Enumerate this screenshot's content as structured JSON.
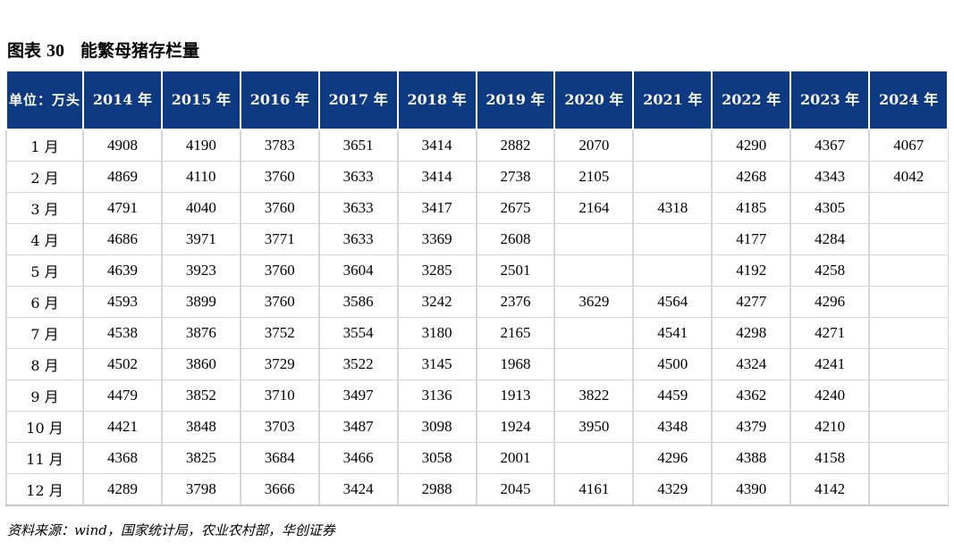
{
  "title": {
    "label": "图表",
    "number": "30",
    "text": "能繁母猪存栏量"
  },
  "table": {
    "unit_header": "单位：万头",
    "columns": [
      "2014 年",
      "2015 年",
      "2016 年",
      "2017 年",
      "2018 年",
      "2019 年",
      "2020 年",
      "2021 年",
      "2022 年",
      "2023 年",
      "2024 年"
    ],
    "rows": [
      {
        "month": "1 月",
        "values": [
          "4908",
          "4190",
          "3783",
          "3651",
          "3414",
          "2882",
          "2070",
          "",
          "4290",
          "4367",
          "4067"
        ]
      },
      {
        "month": "2 月",
        "values": [
          "4869",
          "4110",
          "3760",
          "3633",
          "3414",
          "2738",
          "2105",
          "",
          "4268",
          "4343",
          "4042"
        ]
      },
      {
        "month": "3 月",
        "values": [
          "4791",
          "4040",
          "3760",
          "3633",
          "3417",
          "2675",
          "2164",
          "4318",
          "4185",
          "4305",
          ""
        ]
      },
      {
        "month": "4 月",
        "values": [
          "4686",
          "3971",
          "3771",
          "3633",
          "3369",
          "2608",
          "",
          "",
          "4177",
          "4284",
          ""
        ]
      },
      {
        "month": "5 月",
        "values": [
          "4639",
          "3923",
          "3760",
          "3604",
          "3285",
          "2501",
          "",
          "",
          "4192",
          "4258",
          ""
        ]
      },
      {
        "month": "6 月",
        "values": [
          "4593",
          "3899",
          "3760",
          "3586",
          "3242",
          "2376",
          "3629",
          "4564",
          "4277",
          "4296",
          ""
        ]
      },
      {
        "month": "7 月",
        "values": [
          "4538",
          "3876",
          "3752",
          "3554",
          "3180",
          "2165",
          "",
          "4541",
          "4298",
          "4271",
          ""
        ]
      },
      {
        "month": "8 月",
        "values": [
          "4502",
          "3860",
          "3729",
          "3522",
          "3145",
          "1968",
          "",
          "4500",
          "4324",
          "4241",
          ""
        ]
      },
      {
        "month": "9 月",
        "values": [
          "4479",
          "3852",
          "3710",
          "3497",
          "3136",
          "1913",
          "3822",
          "4459",
          "4362",
          "4240",
          ""
        ]
      },
      {
        "month": "10 月",
        "values": [
          "4421",
          "3848",
          "3703",
          "3487",
          "3098",
          "1924",
          "3950",
          "4348",
          "4379",
          "4210",
          ""
        ]
      },
      {
        "month": "11 月",
        "values": [
          "4368",
          "3825",
          "3684",
          "3466",
          "3058",
          "2001",
          "",
          "4296",
          "4388",
          "4158",
          ""
        ]
      },
      {
        "month": "12 月",
        "values": [
          "4289",
          "3798",
          "3666",
          "3424",
          "2988",
          "2045",
          "4161",
          "4329",
          "4390",
          "4142",
          ""
        ]
      }
    ]
  },
  "source": "资料来源：wind，国家统计局，农业农村部，华创证券",
  "colors": {
    "header_bg": "#0d3a80",
    "header_text": "#ffffff",
    "grid_line": "#d6d6d6"
  }
}
